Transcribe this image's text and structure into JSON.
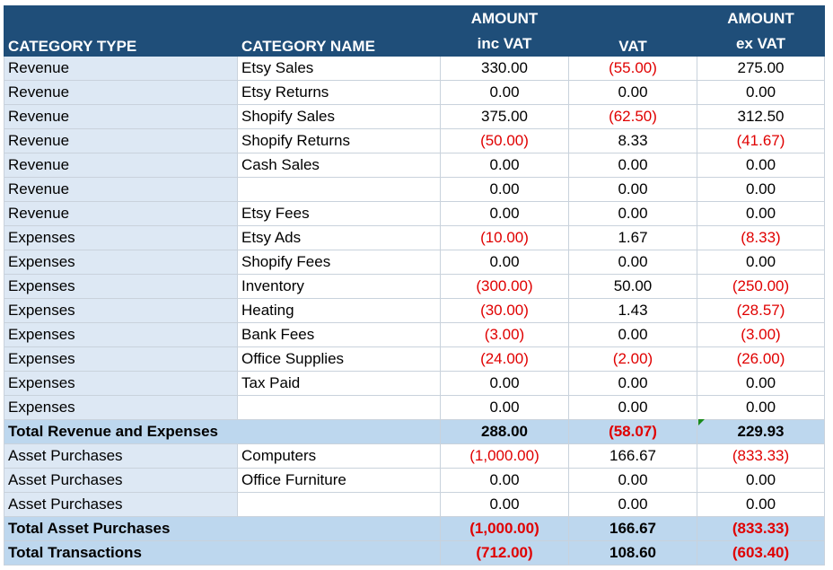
{
  "headers": {
    "category_type": "CATEGORY TYPE",
    "category_name": "CATEGORY NAME",
    "amount_inc_top": "AMOUNT",
    "amount_inc_bottom": "inc VAT",
    "vat": "VAT",
    "amount_ex_top": "AMOUNT",
    "amount_ex_bottom": "ex VAT"
  },
  "rows": [
    {
      "type": "Revenue",
      "name": "Etsy Sales",
      "inc": "330.00",
      "vat": "(55.00)",
      "ex": "275.00",
      "inc_neg": false,
      "vat_neg": true,
      "ex_neg": false
    },
    {
      "type": "Revenue",
      "name": "Etsy Returns",
      "inc": "0.00",
      "vat": "0.00",
      "ex": "0.00",
      "inc_neg": false,
      "vat_neg": false,
      "ex_neg": false
    },
    {
      "type": "Revenue",
      "name": "Shopify Sales",
      "inc": "375.00",
      "vat": "(62.50)",
      "ex": "312.50",
      "inc_neg": false,
      "vat_neg": true,
      "ex_neg": false
    },
    {
      "type": "Revenue",
      "name": "Shopify Returns",
      "inc": "(50.00)",
      "vat": "8.33",
      "ex": "(41.67)",
      "inc_neg": true,
      "vat_neg": false,
      "ex_neg": true
    },
    {
      "type": "Revenue",
      "name": "Cash Sales",
      "inc": "0.00",
      "vat": "0.00",
      "ex": "0.00",
      "inc_neg": false,
      "vat_neg": false,
      "ex_neg": false
    },
    {
      "type": "Revenue",
      "name": "",
      "inc": "0.00",
      "vat": "0.00",
      "ex": "0.00",
      "inc_neg": false,
      "vat_neg": false,
      "ex_neg": false
    },
    {
      "type": "Revenue",
      "name": "Etsy Fees",
      "inc": "0.00",
      "vat": "0.00",
      "ex": "0.00",
      "inc_neg": false,
      "vat_neg": false,
      "ex_neg": false
    },
    {
      "type": "Expenses",
      "name": "Etsy Ads",
      "inc": "(10.00)",
      "vat": "1.67",
      "ex": "(8.33)",
      "inc_neg": true,
      "vat_neg": false,
      "ex_neg": true
    },
    {
      "type": "Expenses",
      "name": "Shopify Fees",
      "inc": "0.00",
      "vat": "0.00",
      "ex": "0.00",
      "inc_neg": false,
      "vat_neg": false,
      "ex_neg": false
    },
    {
      "type": "Expenses",
      "name": "Inventory",
      "inc": "(300.00)",
      "vat": "50.00",
      "ex": "(250.00)",
      "inc_neg": true,
      "vat_neg": false,
      "ex_neg": true
    },
    {
      "type": "Expenses",
      "name": "Heating",
      "inc": "(30.00)",
      "vat": "1.43",
      "ex": "(28.57)",
      "inc_neg": true,
      "vat_neg": false,
      "ex_neg": true
    },
    {
      "type": "Expenses",
      "name": "Bank Fees",
      "inc": "(3.00)",
      "vat": "0.00",
      "ex": "(3.00)",
      "inc_neg": true,
      "vat_neg": false,
      "ex_neg": true
    },
    {
      "type": "Expenses",
      "name": "Office Supplies",
      "inc": "(24.00)",
      "vat": "(2.00)",
      "ex": "(26.00)",
      "inc_neg": true,
      "vat_neg": true,
      "ex_neg": true
    },
    {
      "type": "Expenses",
      "name": "Tax Paid",
      "inc": "0.00",
      "vat": "0.00",
      "ex": "0.00",
      "inc_neg": false,
      "vat_neg": false,
      "ex_neg": false
    },
    {
      "type": "Expenses",
      "name": "",
      "inc": "0.00",
      "vat": "0.00",
      "ex": "0.00",
      "inc_neg": false,
      "vat_neg": false,
      "ex_neg": false
    },
    {
      "total": true,
      "label": "Total Revenue and Expenses",
      "inc": "288.00",
      "vat": "(58.07)",
      "ex": "229.93",
      "inc_neg": false,
      "vat_neg": true,
      "ex_neg": false
    },
    {
      "type": "Asset Purchases",
      "name": "Computers",
      "inc": "(1,000.00)",
      "vat": "166.67",
      "ex": "(833.33)",
      "inc_neg": true,
      "vat_neg": false,
      "ex_neg": true
    },
    {
      "type": "Asset Purchases",
      "name": "Office Furniture",
      "inc": "0.00",
      "vat": "0.00",
      "ex": "0.00",
      "inc_neg": false,
      "vat_neg": false,
      "ex_neg": false
    },
    {
      "type": "Asset Purchases",
      "name": "",
      "inc": "0.00",
      "vat": "0.00",
      "ex": "0.00",
      "inc_neg": false,
      "vat_neg": false,
      "ex_neg": false
    },
    {
      "total": true,
      "label": "Total Asset Purchases",
      "inc": "(1,000.00)",
      "vat": "166.67",
      "ex": "(833.33)",
      "inc_neg": true,
      "vat_neg": false,
      "ex_neg": true
    },
    {
      "total": true,
      "label": "Total Transactions",
      "inc": "(712.00)",
      "vat": "108.60",
      "ex": "(603.40)",
      "inc_neg": true,
      "vat_neg": false,
      "ex_neg": true
    }
  ],
  "colors": {
    "header_bg": "#1f4e79",
    "category_bg": "#dde8f4",
    "total_bg": "#bdd7ee",
    "negative": "#e00000",
    "comment_marker": "#1a8a1a"
  }
}
